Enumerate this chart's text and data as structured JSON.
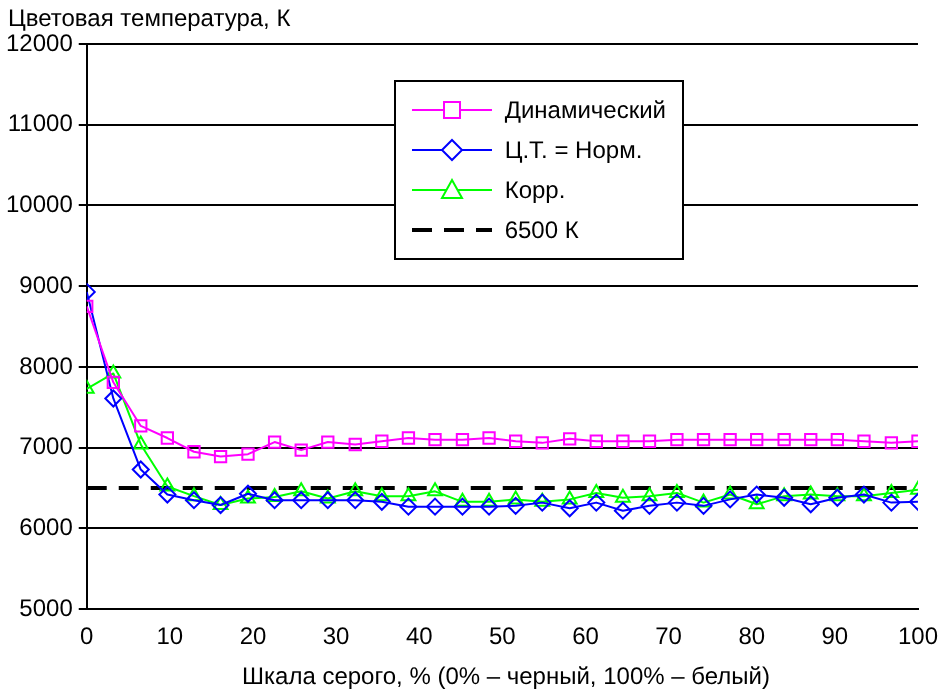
{
  "chart_data": {
    "type": "line",
    "ylabel": "Цветовая температура, К",
    "xlabel": "Шкала серого, % (0% – черный, 100% – белый)",
    "x": [
      0,
      3.2,
      6.5,
      9.7,
      12.9,
      16.1,
      19.4,
      22.6,
      25.8,
      29,
      32.3,
      35.5,
      38.7,
      41.9,
      45.2,
      48.4,
      51.6,
      54.8,
      58.1,
      61.3,
      64.5,
      67.7,
      71,
      74.2,
      77.4,
      80.6,
      83.9,
      87.1,
      90.3,
      93.5,
      96.8,
      100
    ],
    "xlim": [
      0,
      100
    ],
    "xticks": [
      0,
      10,
      20,
      30,
      40,
      50,
      60,
      70,
      80,
      90,
      100
    ],
    "ylim": [
      5000,
      12000
    ],
    "yticks": [
      5000,
      6000,
      7000,
      8000,
      9000,
      10000,
      11000,
      12000
    ],
    "grid": "y",
    "legend": "top right",
    "series": [
      {
        "name": "Динамический",
        "color": "#ff00ff",
        "marker": "square",
        "values": [
          8750,
          7810,
          7270,
          7120,
          6950,
          6890,
          6920,
          7070,
          6970,
          7070,
          7040,
          7080,
          7120,
          7100,
          7100,
          7120,
          7080,
          7060,
          7110,
          7080,
          7080,
          7080,
          7100,
          7100,
          7100,
          7100,
          7100,
          7100,
          7100,
          7080,
          7060,
          7080
        ]
      },
      {
        "name": "Ц.Т. = Норм.",
        "color": "#0000ff",
        "marker": "diamond",
        "values": [
          8930,
          7610,
          6730,
          6420,
          6350,
          6290,
          6430,
          6350,
          6350,
          6350,
          6350,
          6330,
          6270,
          6270,
          6270,
          6270,
          6280,
          6320,
          6250,
          6320,
          6220,
          6280,
          6320,
          6280,
          6360,
          6420,
          6380,
          6300,
          6380,
          6420,
          6320,
          6330
        ]
      },
      {
        "name": "Корр.",
        "color": "#00ff00",
        "marker": "triangle",
        "values": [
          7730,
          7920,
          7040,
          6520,
          6400,
          6290,
          6370,
          6390,
          6460,
          6370,
          6460,
          6400,
          6400,
          6460,
          6330,
          6330,
          6360,
          6330,
          6360,
          6440,
          6380,
          6400,
          6440,
          6320,
          6420,
          6300,
          6400,
          6420,
          6400,
          6400,
          6440,
          6480
        ]
      },
      {
        "name": "6500 К",
        "color": "#000000",
        "marker": "none",
        "line_style": "dashed",
        "x": [
          0,
          100
        ],
        "values": [
          6500,
          6500
        ]
      }
    ]
  }
}
